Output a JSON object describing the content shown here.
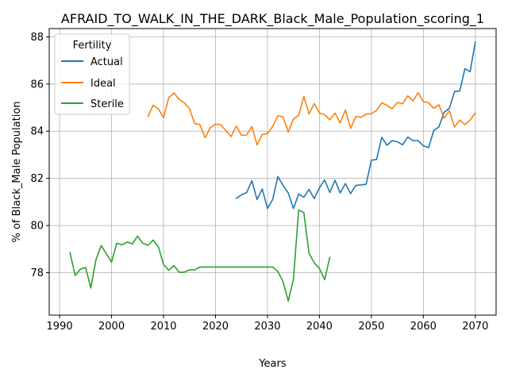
{
  "chart_data": {
    "type": "line",
    "title": "AFRAID_TO_WALK_IN_THE_DARK_Black_Male_Population_scoring_1",
    "xlabel": "Years",
    "ylabel": "% of Black_Male Population",
    "xlim": [
      1988,
      2074
    ],
    "ylim": [
      76.2,
      88.35
    ],
    "xticks": [
      1990,
      2000,
      2010,
      2020,
      2030,
      2040,
      2050,
      2060,
      2070
    ],
    "yticks": [
      78,
      80,
      82,
      84,
      86,
      88
    ],
    "grid": true,
    "legend": {
      "title": "Fertility",
      "position": "top-left"
    },
    "series": [
      {
        "name": "Actual",
        "color": "#1f77b4",
        "x": [
          2024,
          2025,
          2026,
          2027,
          2028,
          2029,
          2030,
          2031,
          2032,
          2033,
          2034,
          2035,
          2036,
          2037,
          2038,
          2039,
          2040,
          2041,
          2042,
          2043,
          2044,
          2045,
          2046,
          2047,
          2048,
          2049,
          2050,
          2051,
          2052,
          2053,
          2054,
          2055,
          2056,
          2057,
          2058,
          2059,
          2060,
          2061,
          2062,
          2063,
          2064,
          2065,
          2066,
          2067,
          2068,
          2069,
          2070
        ],
        "values": [
          81.15,
          81.3,
          81.4,
          81.9,
          81.1,
          81.55,
          80.72,
          81.1,
          82.07,
          81.7,
          81.38,
          80.72,
          81.33,
          81.2,
          81.53,
          81.14,
          81.6,
          81.93,
          81.4,
          81.92,
          81.38,
          81.78,
          81.35,
          81.7,
          81.72,
          81.75,
          82.77,
          82.8,
          83.74,
          83.4,
          83.6,
          83.55,
          83.42,
          83.75,
          83.6,
          83.6,
          83.38,
          83.3,
          84.02,
          84.18,
          84.8,
          84.97,
          85.68,
          85.7,
          86.65,
          86.52,
          87.78
        ]
      },
      {
        "name": "Ideal",
        "color": "#ff7f0e",
        "x": [
          2007,
          2008,
          2009,
          2010,
          2011,
          2012,
          2013,
          2014,
          2015,
          2016,
          2017,
          2018,
          2019,
          2020,
          2021,
          2022,
          2023,
          2024,
          2025,
          2026,
          2027,
          2028,
          2029,
          2030,
          2031,
          2032,
          2033,
          2034,
          2035,
          2036,
          2037,
          2038,
          2039,
          2040,
          2041,
          2042,
          2043,
          2044,
          2045,
          2046,
          2047,
          2048,
          2049,
          2050,
          2051,
          2052,
          2053,
          2054,
          2055,
          2056,
          2057,
          2058,
          2059,
          2060,
          2061,
          2062,
          2063,
          2064,
          2065,
          2066,
          2067,
          2068,
          2069,
          2070
        ],
        "values": [
          84.62,
          85.1,
          84.95,
          84.57,
          85.42,
          85.62,
          85.35,
          85.2,
          84.95,
          84.32,
          84.28,
          83.72,
          84.15,
          84.3,
          84.28,
          84.02,
          83.77,
          84.22,
          83.82,
          83.84,
          84.2,
          83.42,
          83.86,
          83.9,
          84.2,
          84.65,
          84.61,
          83.96,
          84.52,
          84.67,
          85.47,
          84.73,
          85.17,
          84.77,
          84.7,
          84.48,
          84.77,
          84.35,
          84.9,
          84.12,
          84.62,
          84.59,
          84.72,
          84.74,
          84.88,
          85.2,
          85.1,
          84.95,
          85.22,
          85.16,
          85.5,
          85.28,
          85.63,
          85.25,
          85.2,
          84.97,
          85.12,
          84.55,
          84.87,
          84.17,
          84.47,
          84.28,
          84.47,
          84.77
        ]
      },
      {
        "name": "Sterile",
        "color": "#2ca02c",
        "x": [
          1992,
          1993,
          1994,
          1995,
          1996,
          1997,
          1998,
          1999,
          2000,
          2001,
          2002,
          2003,
          2004,
          2005,
          2006,
          2007,
          2008,
          2009,
          2010,
          2011,
          2012,
          2013,
          2014,
          2015,
          2016,
          2017,
          2018,
          2019,
          2020,
          2021,
          2022,
          2023,
          2024,
          2025,
          2026,
          2027,
          2028,
          2029,
          2030,
          2031,
          2032,
          2033,
          2034,
          2035,
          2036,
          2037,
          2038,
          2039,
          2040,
          2041,
          2042
        ],
        "values": [
          78.85,
          77.88,
          78.15,
          78.22,
          77.35,
          78.55,
          79.15,
          78.8,
          78.45,
          79.25,
          79.18,
          79.3,
          79.22,
          79.55,
          79.25,
          79.16,
          79.38,
          79.1,
          78.35,
          78.1,
          78.3,
          78.02,
          78.02,
          78.12,
          78.12,
          78.24,
          78.24,
          78.24,
          78.24,
          78.24,
          78.24,
          78.24,
          78.24,
          78.24,
          78.24,
          78.24,
          78.24,
          78.24,
          78.24,
          78.24,
          78.05,
          77.62,
          76.8,
          77.72,
          80.65,
          80.55,
          78.82,
          78.42,
          78.18,
          77.7,
          78.65
        ]
      }
    ]
  }
}
